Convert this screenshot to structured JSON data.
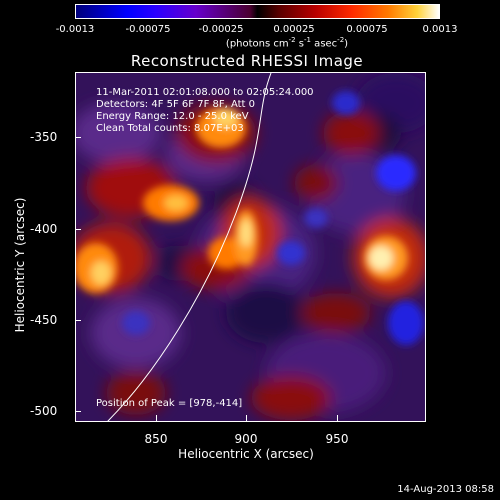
{
  "colorbar": {
    "ticks": [
      "-0.0013",
      "-0.00075",
      "-0.00025",
      "0.00025",
      "0.00075",
      "0.0013"
    ],
    "units_prefix": "(photons cm",
    "units_exp1": "-2",
    "units_mid1": " s",
    "units_exp2": "-1",
    "units_mid2": " asec",
    "units_exp3": "-2",
    "units_suffix": ")"
  },
  "title": "Reconstructed RHESSI Image",
  "info": {
    "line1": "11-Mar-2011 02:01:08.000 to 02:05:24.000",
    "line2": "Detectors: 4F 5F 6F 7F 8F, Att 0",
    "line3": "Energy Range: 12.0 - 25.0 keV",
    "line4": "Clean     Total counts: 8.07E+03",
    "peak": "Position of Peak = [978,-414]"
  },
  "axes": {
    "xlabel": "Heliocentric X (arcsec)",
    "ylabel": "Heliocentric Y (arcsec)",
    "xticks": [
      "850",
      "900",
      "950"
    ],
    "yticks": [
      "-350",
      "-400",
      "-450",
      "-500"
    ]
  },
  "timestamp": "14-Aug-2013 08:58",
  "colors": {
    "background": "#000000",
    "text": "#ffffff",
    "limb": "#ffffff"
  }
}
